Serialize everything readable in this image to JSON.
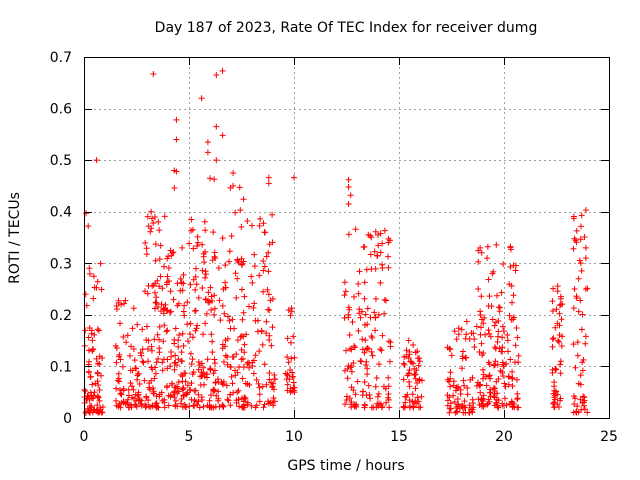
{
  "chart_data": {
    "type": "scatter",
    "title": "Day 187 of 2023, Rate Of TEC Index for receiver dumg",
    "xlabel": "GPS time / hours",
    "ylabel": "ROTI / TECUs",
    "xlim": [
      0,
      25
    ],
    "ylim": [
      0,
      0.7
    ],
    "x_ticks": [
      0,
      5,
      10,
      15,
      20,
      25
    ],
    "x_tick_labels": [
      "0",
      "5",
      "10",
      "15",
      "20",
      "25"
    ],
    "y_ticks": [
      0,
      0.1,
      0.2,
      0.3,
      0.4,
      0.5,
      0.6,
      0.7
    ],
    "y_tick_labels": [
      "0",
      "0.1",
      "0.2",
      "0.3",
      "0.4",
      "0.5",
      "0.6",
      "0.7"
    ],
    "grid": true,
    "marker": "+",
    "color": "#ff0000",
    "clusters": [
      {
        "x_range": [
          0.0,
          0.9
        ],
        "y_range": [
          0.01,
          0.3
        ],
        "density": 90
      },
      {
        "x_range": [
          1.5,
          2.9
        ],
        "y_range": [
          0.02,
          0.23
        ],
        "density": 90
      },
      {
        "x_range": [
          2.9,
          3.9
        ],
        "y_range": [
          0.02,
          0.4
        ],
        "density": 100
      },
      {
        "x_range": [
          3.9,
          5.0
        ],
        "y_range": [
          0.02,
          0.33
        ],
        "density": 100
      },
      {
        "x_range": [
          5.0,
          6.2
        ],
        "y_range": [
          0.02,
          0.39
        ],
        "density": 110
      },
      {
        "x_range": [
          6.2,
          7.6
        ],
        "y_range": [
          0.02,
          0.46
        ],
        "density": 110
      },
      {
        "x_range": [
          7.6,
          9.1
        ],
        "y_range": [
          0.02,
          0.4
        ],
        "density": 100
      },
      {
        "x_range": [
          9.6,
          10.1
        ],
        "y_range": [
          0.05,
          0.23
        ],
        "density": 30
      },
      {
        "x_range": [
          12.4,
          14.6
        ],
        "y_range": [
          0.02,
          0.37
        ],
        "density": 150
      },
      {
        "x_range": [
          15.2,
          16.1
        ],
        "y_range": [
          0.02,
          0.16
        ],
        "density": 60
      },
      {
        "x_range": [
          17.3,
          18.6
        ],
        "y_range": [
          0.01,
          0.2
        ],
        "density": 80
      },
      {
        "x_range": [
          18.7,
          20.7
        ],
        "y_range": [
          0.02,
          0.34
        ],
        "density": 170
      },
      {
        "x_range": [
          22.3,
          22.8
        ],
        "y_range": [
          0.02,
          0.26
        ],
        "density": 50
      },
      {
        "x_range": [
          23.3,
          24.0
        ],
        "y_range": [
          0.01,
          0.4
        ],
        "density": 55
      }
    ],
    "points": [
      [
        3.3,
        0.667
      ],
      [
        6.3,
        0.665
      ],
      [
        6.6,
        0.673
      ],
      [
        5.6,
        0.62
      ],
      [
        4.4,
        0.578
      ],
      [
        6.3,
        0.565
      ],
      [
        6.6,
        0.548
      ],
      [
        5.9,
        0.535
      ],
      [
        4.4,
        0.54
      ],
      [
        6.3,
        0.5
      ],
      [
        0.6,
        0.5
      ],
      [
        5.9,
        0.515
      ],
      [
        4.3,
        0.48
      ],
      [
        4.4,
        0.478
      ],
      [
        7.1,
        0.475
      ],
      [
        6.0,
        0.465
      ],
      [
        6.2,
        0.463
      ],
      [
        8.8,
        0.466
      ],
      [
        10.0,
        0.466
      ],
      [
        12.6,
        0.462
      ],
      [
        4.3,
        0.446
      ],
      [
        7.1,
        0.45
      ],
      [
        8.8,
        0.455
      ],
      [
        12.6,
        0.448
      ],
      [
        12.7,
        0.432
      ],
      [
        12.6,
        0.415
      ],
      [
        3.2,
        0.4
      ],
      [
        0.1,
        0.397
      ],
      [
        23.9,
        0.403
      ],
      [
        23.7,
        0.393
      ],
      [
        0.2,
        0.372
      ],
      [
        14.0,
        0.355
      ],
      [
        23.9,
        0.33
      ],
      [
        23.9,
        0.31
      ],
      [
        23.9,
        0.25
      ]
    ]
  }
}
